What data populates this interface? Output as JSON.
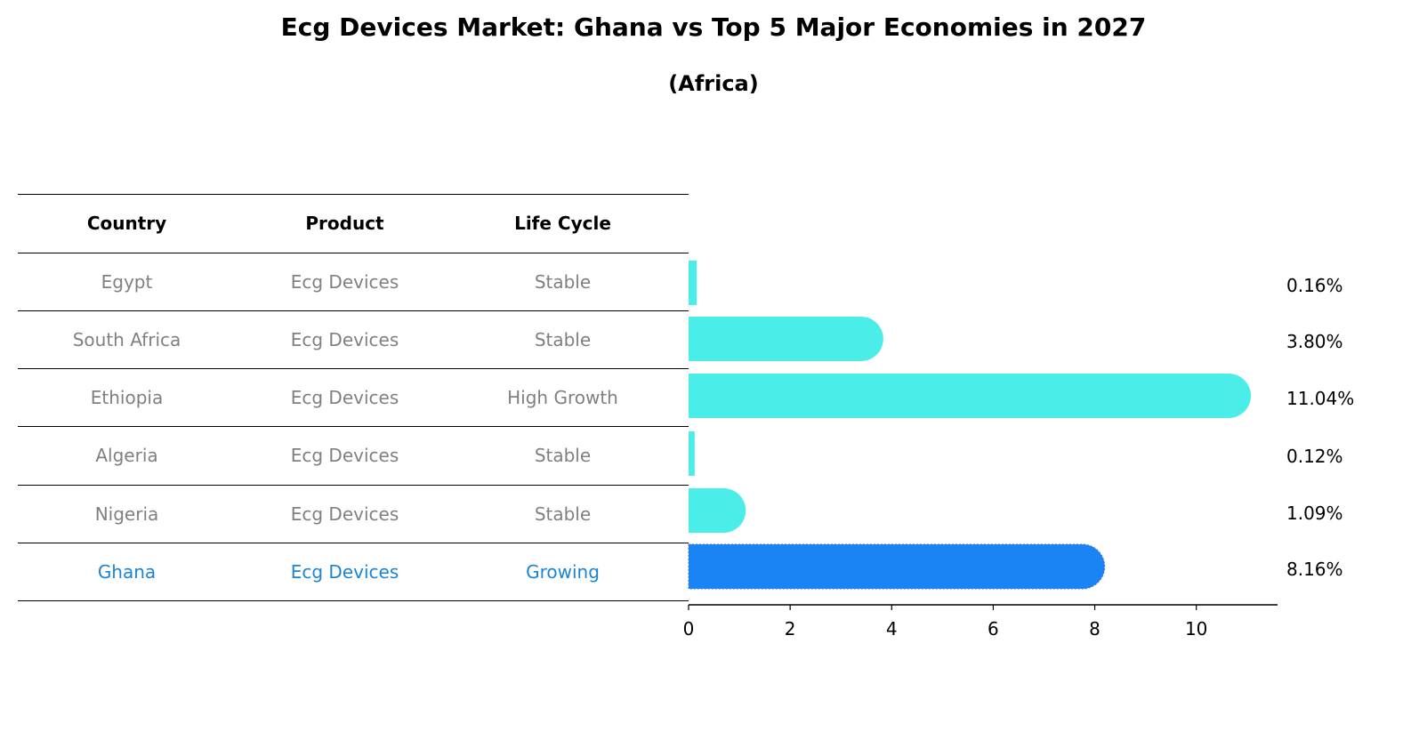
{
  "title": "Ecg Devices Market: Ghana vs Top 5 Major Economies in 2027",
  "subtitle": "(Africa)",
  "colors": {
    "muted_text": "#808080",
    "highlight_text": "#1a84d6",
    "bar": "#4bede9",
    "highlight_bar": "#1a84f5",
    "rule": "#000000"
  },
  "table": {
    "headers": [
      "Country",
      "Product",
      "Life Cycle"
    ],
    "rows": [
      {
        "country": "Egypt",
        "product": "Ecg Devices",
        "life_cycle": "Stable",
        "highlight": false
      },
      {
        "country": "South Africa",
        "product": "Ecg Devices",
        "life_cycle": "Stable",
        "highlight": false
      },
      {
        "country": "Ethiopia",
        "product": "Ecg Devices",
        "life_cycle": "High Growth",
        "highlight": false
      },
      {
        "country": "Algeria",
        "product": "Ecg Devices",
        "life_cycle": "Stable",
        "highlight": false
      },
      {
        "country": "Nigeria",
        "product": "Ecg Devices",
        "life_cycle": "Stable",
        "highlight": false
      },
      {
        "country": "Ghana",
        "product": "Ecg Devices",
        "life_cycle": "Growing",
        "highlight": true
      }
    ]
  },
  "chart_data": {
    "type": "bar",
    "orientation": "horizontal",
    "categories": [
      "Egypt",
      "South Africa",
      "Ethiopia",
      "Algeria",
      "Nigeria",
      "Ghana"
    ],
    "values": [
      0.16,
      3.8,
      11.04,
      0.12,
      1.09,
      8.16
    ],
    "value_labels": [
      "0.16%",
      "3.80%",
      "11.04%",
      "0.12%",
      "1.09%",
      "8.16%"
    ],
    "highlight_category": "Ghana",
    "xlim": [
      0,
      11.6
    ],
    "xticks": [
      0,
      2,
      4,
      6,
      8,
      10
    ],
    "xtick_labels": [
      "0",
      "2",
      "4",
      "6",
      "8",
      "10"
    ],
    "grid": false,
    "legend": "none"
  }
}
